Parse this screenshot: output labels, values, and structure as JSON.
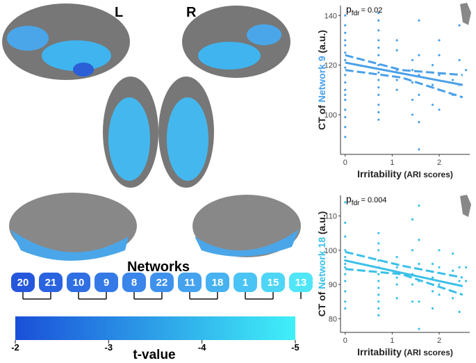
{
  "figure": {
    "left_label": "L",
    "right_label": "R",
    "networks_title": "Networks",
    "networks": [
      "20",
      "21",
      "10",
      "9",
      "8",
      "22",
      "11",
      "18",
      "1",
      "15",
      "13"
    ],
    "network_colors": [
      "#2457dc",
      "#2a63e0",
      "#2f6ee3",
      "#3479e6",
      "#3a86ea",
      "#3f92ec",
      "#44a2ef",
      "#47b2f1",
      "#4ac4f4",
      "#4dd6f6",
      "#50e6f8"
    ],
    "colorbar": {
      "label": "t-value",
      "lim": [
        -2,
        -5
      ],
      "ticks": [
        -2,
        -3,
        -4,
        -5
      ],
      "colors": [
        "#1a4fd8",
        "#40f0f8"
      ]
    }
  },
  "chart_data": [
    {
      "type": "scatter",
      "y_label": [
        "CT of ",
        "Network 9",
        " (a.u.)"
      ],
      "label_color": "#4aa0e8",
      "x_label": [
        "Irritability",
        " (ARI scores)"
      ],
      "annotation": {
        "p": "p",
        "sub": "fdr",
        "text": "= 0.02"
      },
      "xlim": [
        -0.1,
        2.65
      ],
      "xticks": [
        0,
        1,
        2
      ],
      "ylim": [
        84,
        144
      ],
      "yticks": [
        100,
        120,
        140
      ],
      "series": [
        {
          "style": "points",
          "color": "#4aa0e8",
          "x": [
            0,
            0,
            0,
            0,
            0,
            0,
            0,
            0,
            0,
            0,
            0,
            0,
            0,
            0,
            0,
            0,
            0,
            0.71,
            0.71,
            0.71,
            0.71,
            0.71,
            0.71,
            0.71,
            0.71,
            0.71,
            0.71,
            0.71,
            0.71,
            0.71,
            0.71,
            1.1,
            1.1,
            1.1,
            1.1,
            1.1,
            1.43,
            1.43,
            1.43,
            1.43,
            1.43,
            1.57,
            1.57,
            1.57,
            1.57,
            1.57,
            1.57,
            1.86,
            1.86,
            1.86,
            2,
            2,
            2,
            2,
            2,
            2.29,
            2.29,
            2.43,
            2.43,
            2.43,
            2.57
          ],
          "values": [
            140,
            136,
            133,
            130,
            128,
            125,
            122,
            119,
            116,
            113,
            110,
            108,
            106,
            102,
            99,
            95,
            91,
            141,
            138,
            134,
            130,
            127,
            124,
            120,
            117,
            114,
            111,
            108,
            104,
            101,
            98,
            130,
            126,
            118,
            114,
            110,
            122,
            118,
            113,
            106,
            100,
            138,
            124,
            116,
            108,
            97,
            86,
            120,
            112,
            104,
            130,
            124,
            116,
            110,
            102,
            114,
            108,
            136,
            122,
            112,
            118
          ]
        },
        {
          "style": "line",
          "color": "#4aa0e8",
          "x": [
            0,
            2.5
          ],
          "values": [
            121,
            112
          ]
        },
        {
          "style": "dashed",
          "color": "#4aa0e8",
          "x": [
            0,
            1.2,
            2.5
          ],
          "values": [
            118,
            115,
            107
          ]
        },
        {
          "style": "dashed",
          "color": "#4aa0e8",
          "x": [
            0,
            1.2,
            2.5
          ],
          "values": [
            124,
            118,
            116
          ]
        }
      ]
    },
    {
      "type": "scatter",
      "y_label": [
        "CT of ",
        "Network 18",
        " (a.u.)"
      ],
      "label_color": "#39c0e8",
      "x_label": [
        "Irritability",
        " (ARI scores)"
      ],
      "annotation": {
        "p": "p",
        "sub": "fdr",
        "text": "= 0.004"
      },
      "xlim": [
        -0.1,
        2.65
      ],
      "xticks": [
        0,
        1,
        2
      ],
      "ylim": [
        76,
        116
      ],
      "yticks": [
        80,
        90,
        100,
        110
      ],
      "series": [
        {
          "style": "points",
          "color": "#39c0e8",
          "x": [
            0,
            0,
            0,
            0,
            0,
            0,
            0,
            0,
            0,
            0,
            0,
            0,
            0,
            0.71,
            0.71,
            0.71,
            0.71,
            0.71,
            0.71,
            0.71,
            0.71,
            0.71,
            0.71,
            0.71,
            0.71,
            1.1,
            1.1,
            1.1,
            1.1,
            1.1,
            1.43,
            1.43,
            1.43,
            1.43,
            1.43,
            1.57,
            1.57,
            1.57,
            1.57,
            1.57,
            1.57,
            1.86,
            1.86,
            1.86,
            1.86,
            2,
            2,
            2,
            2,
            2.29,
            2.29,
            2.29,
            2.43,
            2.43,
            2.43,
            2.57,
            2.57
          ],
          "values": [
            114,
            108,
            104,
            100,
            98,
            97,
            96,
            95,
            93,
            91,
            88,
            85,
            83,
            105,
            102,
            100,
            97,
            95,
            93,
            91,
            89,
            87,
            85,
            83,
            81,
            98,
            95,
            92,
            90,
            86,
            109,
            100,
            93,
            90,
            85,
            113,
            103,
            96,
            91,
            85,
            77,
            96,
            92,
            88,
            83,
            100,
            95,
            90,
            87,
            99,
            94,
            86,
            95,
            91,
            82,
            95,
            91
          ]
        },
        {
          "style": "line",
          "color": "#39c0e8",
          "x": [
            0,
            2.5
          ],
          "values": [
            97,
            89.5
          ]
        },
        {
          "style": "dashed",
          "color": "#39c0e8",
          "x": [
            0,
            1.2,
            2.5
          ],
          "values": [
            94.5,
            93,
            87
          ]
        },
        {
          "style": "dashed",
          "color": "#39c0e8",
          "x": [
            0,
            1.2,
            2.5
          ],
          "values": [
            99.5,
            95.5,
            92
          ]
        }
      ]
    }
  ]
}
